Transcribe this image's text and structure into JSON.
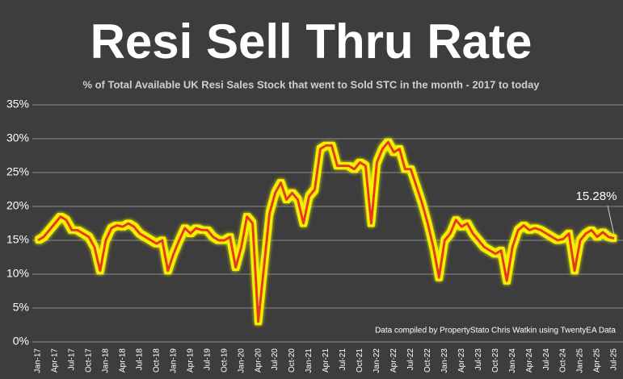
{
  "chart_data": {
    "type": "line",
    "title": "Resi Sell Thru Rate",
    "subtitle": "% of Total Available UK Resi Sales Stock that went to Sold STC in the month - 2017 to today",
    "note": "Data compiled by PropertyStato Chris Watkin using TwentyEA Data",
    "annotation": "15.28%",
    "categories": [
      "Jan-17",
      null,
      null,
      "Apr-17",
      null,
      null,
      "Jul-17",
      null,
      null,
      "Oct-17",
      null,
      null,
      "Jan-18",
      null,
      null,
      "Apr-18",
      null,
      null,
      "Jul-18",
      null,
      null,
      "Oct-18",
      null,
      null,
      "Jan-19",
      null,
      null,
      "Apr-19",
      null,
      null,
      "Jul-19",
      null,
      null,
      "Oct-19",
      null,
      null,
      "Jan-20",
      null,
      null,
      "Apr-20",
      null,
      null,
      "Jul-20",
      null,
      null,
      "Oct-20",
      null,
      null,
      "Jan-21",
      null,
      null,
      "Apr-21",
      null,
      null,
      "Jul-21",
      null,
      null,
      "Oct-21",
      null,
      null,
      "Jan-22",
      null,
      null,
      "Apr-22",
      null,
      null,
      "Jul-22",
      null,
      null,
      "Oct-22",
      null,
      null,
      "Jan-23",
      null,
      null,
      "Apr-23",
      null,
      null,
      "Jul-23",
      null,
      null,
      "Oct-23",
      null,
      null,
      "Jan-24",
      null,
      null,
      "Apr-24",
      null,
      null,
      "Jul-24",
      null,
      null,
      "Oct-24",
      null,
      null,
      "Jan-25",
      null,
      null,
      "Apr-25",
      null,
      null,
      "Jul-25"
    ],
    "values": [
      15,
      15.5,
      16.5,
      17.5,
      18.5,
      18,
      16.5,
      16.5,
      16,
      15.5,
      14,
      10.5,
      15,
      16.8,
      17.2,
      17,
      17.5,
      17,
      16,
      15.5,
      15,
      14.5,
      15,
      10.5,
      13,
      15,
      16.8,
      16,
      16.8,
      16.5,
      16.5,
      15.5,
      15,
      15,
      15.5,
      11,
      14,
      18.5,
      17.5,
      3,
      11,
      19,
      22,
      23.5,
      21,
      22,
      21,
      17.5,
      21.5,
      22.5,
      28.5,
      29,
      29,
      26,
      26,
      26,
      25.5,
      26.5,
      26,
      17.5,
      26.5,
      28.5,
      29.5,
      28,
      28.5,
      25.5,
      25.5,
      23,
      20.5,
      17.5,
      14,
      9.5,
      15,
      16,
      18,
      17,
      17.5,
      16,
      15,
      14,
      13.5,
      13,
      13.5,
      9,
      14,
      16.5,
      17.2,
      16.5,
      16.8,
      16.5,
      16,
      15.5,
      15,
      15.2,
      16,
      10.5,
      15,
      16,
      16.5,
      15.5,
      16.2,
      15.5,
      15.28
    ],
    "color": "#e8341c",
    "glow_color": "#f4f000",
    "ylim": [
      0,
      35
    ],
    "yticks": [
      {
        "value": 0,
        "label": "0%"
      },
      {
        "value": 5,
        "label": "5%"
      },
      {
        "value": 10,
        "label": "10%"
      },
      {
        "value": 15,
        "label": "15%"
      },
      {
        "value": 20,
        "label": "20%"
      },
      {
        "value": 25,
        "label": "25%"
      },
      {
        "value": 30,
        "label": "30%"
      },
      {
        "value": 35,
        "label": "35%"
      }
    ],
    "grid": true
  }
}
